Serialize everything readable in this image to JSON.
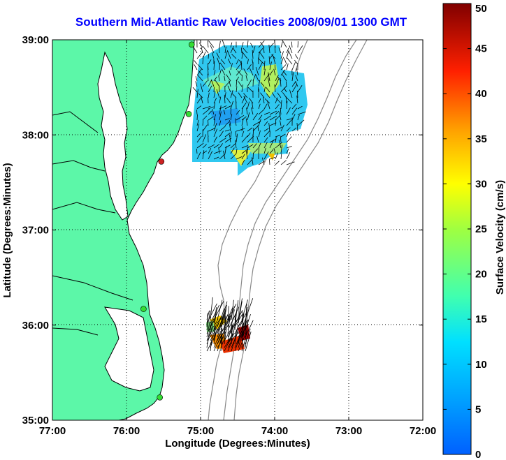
{
  "title": "Southern Mid-Atlantic Raw Velocities 2008/09/01 1300 GMT",
  "map": {
    "xlabel": "Longitude (Degrees:Minutes)",
    "ylabel": "Latitude (Degrees:Minutes)",
    "x_ticks": [
      "77:00",
      "76:00",
      "75:00",
      "74:00",
      "73:00",
      "72:00"
    ],
    "y_ticks": [
      "39:00",
      "38:00",
      "37:00",
      "36:00",
      "35:00"
    ],
    "land_color": "#5cf7a8",
    "stations": [
      {
        "lon": -75.12,
        "lat": 38.95,
        "color": "#33dd33"
      },
      {
        "lon": -75.16,
        "lat": 38.22,
        "color": "#33dd33"
      },
      {
        "lon": -75.53,
        "lat": 37.72,
        "color": "#cc2222"
      },
      {
        "lon": -75.77,
        "lat": 36.17,
        "color": "#33dd33"
      },
      {
        "lon": -75.55,
        "lat": 35.24,
        "color": "#33dd33"
      }
    ]
  },
  "colorbar": {
    "label": "Surface Velocity (cm/s)",
    "ticks": [
      "50",
      "45",
      "40",
      "35",
      "30",
      "25",
      "20",
      "15",
      "10",
      "5",
      "0"
    ],
    "min": 0,
    "max": 50
  }
}
